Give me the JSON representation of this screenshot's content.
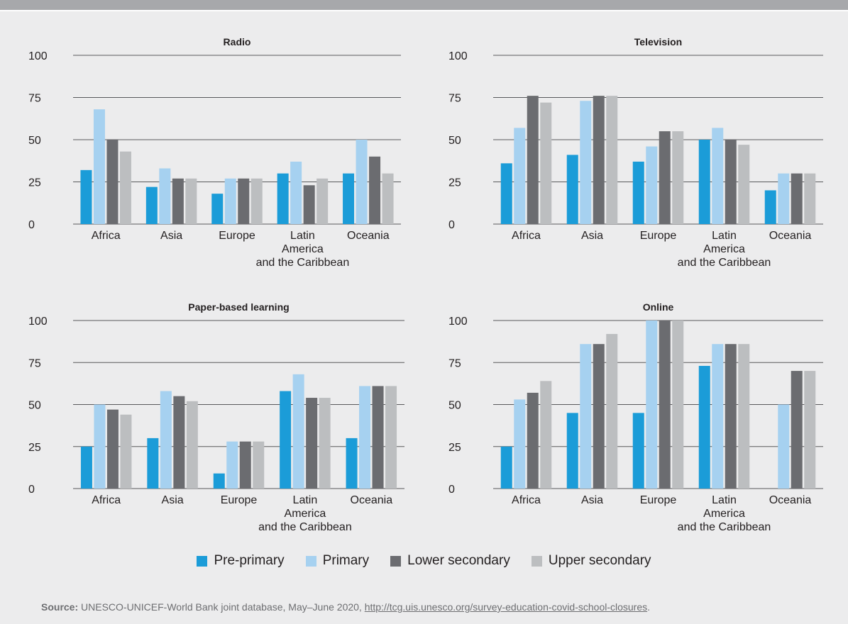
{
  "colors": {
    "pre_primary": "#1b9cd8",
    "primary": "#a6d1f0",
    "lower_secondary": "#6b6c70",
    "upper_secondary": "#bcbec0",
    "grid": "#58595b",
    "text": "#231f20"
  },
  "legend": [
    {
      "label": "Pre-primary",
      "color": "#1b9cd8"
    },
    {
      "label": "Primary",
      "color": "#a6d1f0"
    },
    {
      "label": "Lower secondary",
      "color": "#6b6c70"
    },
    {
      "label": "Upper secondary",
      "color": "#bcbec0"
    }
  ],
  "source": {
    "label": "Source:",
    "text": " UNESCO-UNICEF-World Bank joint database, May–June 2020, ",
    "link": "http://tcg.uis.unesco.org/survey-education-covid-school-closures",
    "end": "."
  },
  "chart_data": [
    {
      "type": "bar",
      "title": "Radio",
      "categories": [
        [
          "Africa"
        ],
        [
          "Asia"
        ],
        [
          "Europe"
        ],
        [
          "Latin",
          "America",
          "and the Caribbean"
        ],
        [
          "Oceania"
        ]
      ],
      "ylim": [
        0,
        100
      ],
      "yticks": [
        0,
        25,
        50,
        75,
        100
      ],
      "series": [
        {
          "name": "Pre-primary",
          "values": [
            32,
            22,
            18,
            30,
            30
          ]
        },
        {
          "name": "Primary",
          "values": [
            68,
            33,
            27,
            37,
            50
          ]
        },
        {
          "name": "Lower secondary",
          "values": [
            50,
            27,
            27,
            23,
            40
          ]
        },
        {
          "name": "Upper secondary",
          "values": [
            43,
            27,
            27,
            27,
            30
          ]
        }
      ]
    },
    {
      "type": "bar",
      "title": "Television",
      "categories": [
        [
          "Africa"
        ],
        [
          "Asia"
        ],
        [
          "Europe"
        ],
        [
          "Latin",
          "America",
          "and the Caribbean"
        ],
        [
          "Oceania"
        ]
      ],
      "ylim": [
        0,
        100
      ],
      "yticks": [
        0,
        25,
        50,
        75,
        100
      ],
      "series": [
        {
          "name": "Pre-primary",
          "values": [
            36,
            41,
            37,
            50,
            20
          ]
        },
        {
          "name": "Primary",
          "values": [
            57,
            73,
            46,
            57,
            30
          ]
        },
        {
          "name": "Lower secondary",
          "values": [
            76,
            76,
            55,
            50,
            30
          ]
        },
        {
          "name": "Upper secondary",
          "values": [
            72,
            76,
            55,
            47,
            30
          ]
        }
      ]
    },
    {
      "type": "bar",
      "title": "Paper-based learning",
      "categories": [
        [
          "Africa"
        ],
        [
          "Asia"
        ],
        [
          "Europe"
        ],
        [
          "Latin",
          "America",
          "and the Caribbean"
        ],
        [
          "Oceania"
        ]
      ],
      "ylim": [
        0,
        100
      ],
      "yticks": [
        0,
        25,
        50,
        75,
        100
      ],
      "series": [
        {
          "name": "Pre-primary",
          "values": [
            25,
            30,
            9,
            58,
            30
          ]
        },
        {
          "name": "Primary",
          "values": [
            50,
            58,
            28,
            68,
            61
          ]
        },
        {
          "name": "Lower secondary",
          "values": [
            47,
            55,
            28,
            54,
            61
          ]
        },
        {
          "name": "Upper secondary",
          "values": [
            44,
            52,
            28,
            54,
            61
          ]
        }
      ]
    },
    {
      "type": "bar",
      "title": "Online",
      "categories": [
        [
          "Africa"
        ],
        [
          "Asia"
        ],
        [
          "Europe"
        ],
        [
          "Latin",
          "America",
          "and the Caribbean"
        ],
        [
          "Oceania"
        ]
      ],
      "ylim": [
        0,
        100
      ],
      "yticks": [
        0,
        25,
        50,
        75,
        100
      ],
      "series": [
        {
          "name": "Pre-primary",
          "values": [
            25,
            45,
            45,
            73,
            0
          ]
        },
        {
          "name": "Primary",
          "values": [
            53,
            86,
            100,
            86,
            50
          ]
        },
        {
          "name": "Lower secondary",
          "values": [
            57,
            86,
            100,
            86,
            70
          ]
        },
        {
          "name": "Upper secondary",
          "values": [
            64,
            92,
            100,
            86,
            70
          ]
        }
      ]
    }
  ]
}
